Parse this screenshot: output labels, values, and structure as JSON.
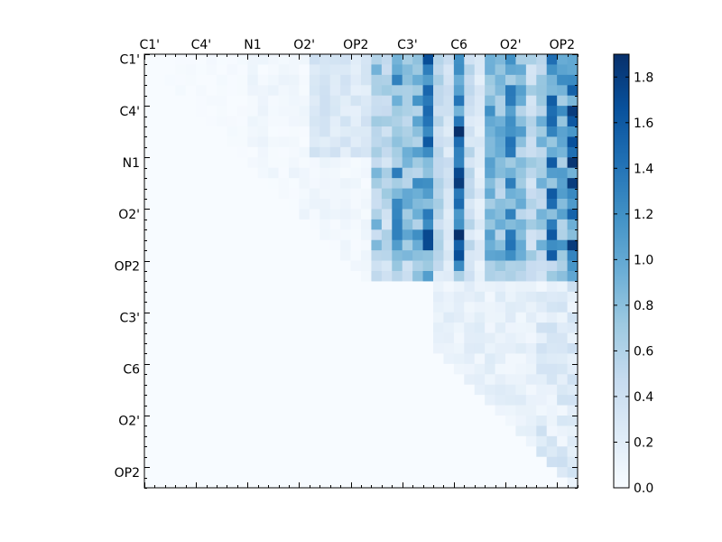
{
  "chart_data": {
    "type": "heatmap",
    "title": "",
    "xlabel": "",
    "ylabel": "",
    "rows": 42,
    "cols": 42,
    "x_tick_labels": [
      "C1'",
      "C4'",
      "N1",
      "O2'",
      "OP2",
      "C3'",
      "C6",
      "O2'",
      "OP2"
    ],
    "y_tick_labels": [
      "C1'",
      "C4'",
      "N1",
      "O2'",
      "OP2",
      "C3'",
      "C6",
      "O2'",
      "OP2"
    ],
    "colorbar": {
      "min": 0.0,
      "max": 1.9,
      "ticks": [
        "0.0",
        "0.2",
        "0.4",
        "0.6",
        "0.8",
        "1.0",
        "1.2",
        "1.4",
        "1.6",
        "1.8"
      ],
      "colormap": "Blues"
    },
    "grid": false
  }
}
